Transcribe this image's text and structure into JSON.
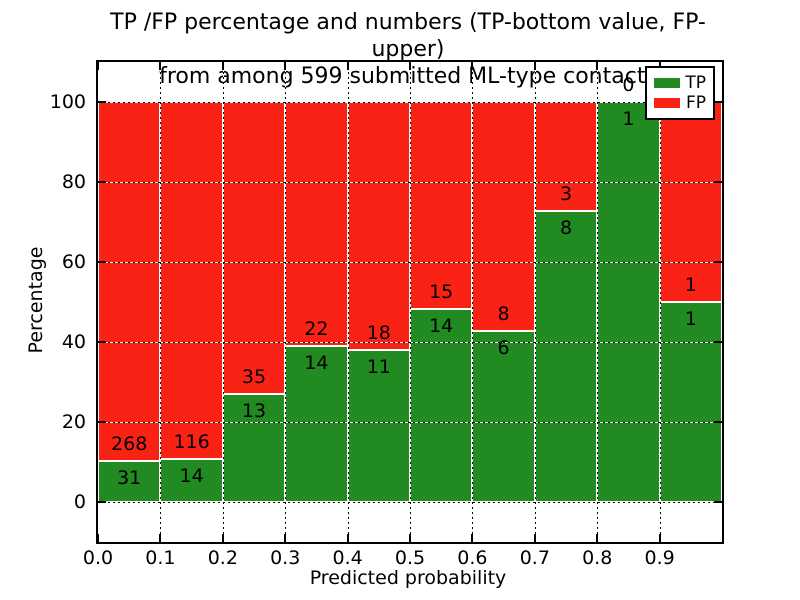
{
  "figure": {
    "title_line1": "TP /FP percentage and numbers (TP-bottom value, FP-upper)",
    "title_line2": "from among 599 submitted ML-type contacts"
  },
  "chart_data": {
    "type": "bar",
    "stacked": true,
    "title": "TP /FP percentage and numbers (TP-bottom value, FP-upper)\nfrom among 599 submitted ML-type contacts",
    "xlabel": "Predicted probability",
    "ylabel": "Percentage",
    "xlim": [
      0.0,
      1.0
    ],
    "ylim": [
      -10,
      110
    ],
    "bin_width": 0.1,
    "bin_starts": [
      0.0,
      0.1,
      0.2,
      0.3,
      0.4,
      0.5,
      0.6,
      0.7,
      0.8,
      0.9
    ],
    "xtick_values": [
      0.0,
      0.1,
      0.2,
      0.3,
      0.4,
      0.5,
      0.6,
      0.7,
      0.8,
      0.9
    ],
    "xtick_labels": [
      "0.0",
      "0.1",
      "0.2",
      "0.3",
      "0.4",
      "0.5",
      "0.6",
      "0.7",
      "0.8",
      "0.9"
    ],
    "ytick_values": [
      0,
      20,
      40,
      60,
      80,
      100
    ],
    "ytick_labels": [
      "0",
      "20",
      "40",
      "60",
      "80",
      "100"
    ],
    "grid": {
      "style": "dotted",
      "color": "#000000"
    },
    "total_contacts": 599,
    "series": [
      {
        "name": "TP",
        "position": "bottom",
        "color": "#218a21",
        "counts": [
          31,
          14,
          13,
          14,
          11,
          14,
          6,
          8,
          1,
          1
        ]
      },
      {
        "name": "FP",
        "position": "top",
        "color": "#fa2115",
        "counts": [
          268,
          116,
          35,
          22,
          18,
          15,
          8,
          3,
          0,
          1
        ]
      }
    ],
    "tp_percent": [
      10.4,
      10.8,
      27.1,
      38.9,
      37.9,
      48.3,
      42.9,
      72.7,
      100.0,
      50.0
    ],
    "legend": {
      "position": "upper right",
      "entries": [
        "TP",
        "FP"
      ]
    }
  }
}
